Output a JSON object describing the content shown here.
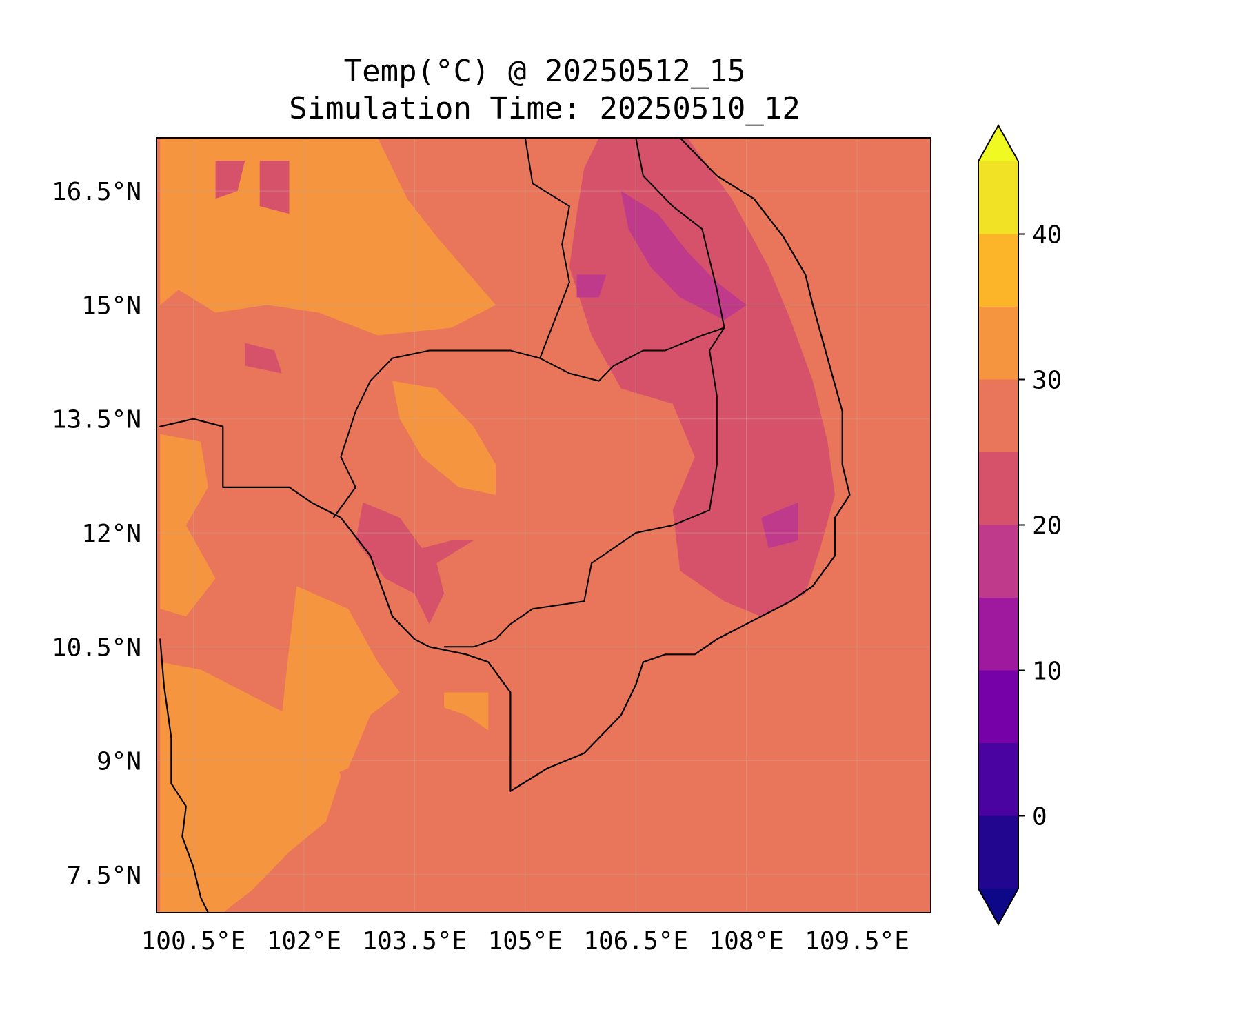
{
  "title": {
    "line1": "Temp(°C) @ 20250512_15",
    "line2": "Simulation Time: 20250510_12"
  },
  "map": {
    "lon_range": [
      100.0,
      110.5
    ],
    "lat_range": [
      7.0,
      17.2
    ],
    "base_color": "#e9755a",
    "lon_ticks": [
      {
        "value": 100.5,
        "label": "100.5°E"
      },
      {
        "value": 102.0,
        "label": "102°E"
      },
      {
        "value": 103.5,
        "label": "103.5°E"
      },
      {
        "value": 105.0,
        "label": "105°E"
      },
      {
        "value": 106.5,
        "label": "106.5°E"
      },
      {
        "value": 108.0,
        "label": "108°E"
      },
      {
        "value": 109.5,
        "label": "109.5°E"
      }
    ],
    "lat_ticks": [
      {
        "value": 16.5,
        "label": "16.5°N"
      },
      {
        "value": 15.0,
        "label": "15°N"
      },
      {
        "value": 13.5,
        "label": "13.5°N"
      },
      {
        "value": 12.0,
        "label": "12°N"
      },
      {
        "value": 10.5,
        "label": "10.5°N"
      },
      {
        "value": 9.0,
        "label": "9°N"
      },
      {
        "value": 7.5,
        "label": "7.5°N"
      }
    ],
    "regions": [
      {
        "name": "warm-gulf-west",
        "band": "30-35",
        "points": [
          [
            100.05,
            7.0
          ],
          [
            100.05,
            10.3
          ],
          [
            100.6,
            10.2
          ],
          [
            101.2,
            9.9
          ],
          [
            101.8,
            9.6
          ],
          [
            102.3,
            9.3
          ],
          [
            102.5,
            8.8
          ],
          [
            102.3,
            8.2
          ],
          [
            101.8,
            7.8
          ],
          [
            101.3,
            7.3
          ],
          [
            100.9,
            7.0
          ]
        ]
      },
      {
        "name": "warm-gulf-east",
        "band": "30-35",
        "points": [
          [
            101.9,
            11.3
          ],
          [
            102.6,
            11.0
          ],
          [
            103.0,
            10.3
          ],
          [
            103.3,
            9.9
          ],
          [
            102.9,
            9.6
          ],
          [
            102.6,
            8.9
          ],
          [
            102.1,
            8.7
          ],
          [
            101.7,
            9.6
          ],
          [
            101.8,
            10.5
          ]
        ]
      },
      {
        "name": "warm-thailand-west",
        "band": "30-35",
        "points": [
          [
            100.05,
            13.3
          ],
          [
            100.6,
            13.2
          ],
          [
            100.7,
            12.6
          ],
          [
            100.4,
            12.1
          ],
          [
            100.8,
            11.4
          ],
          [
            100.4,
            10.9
          ],
          [
            100.05,
            11.0
          ]
        ]
      },
      {
        "name": "warm-northwest",
        "band": "30-35",
        "points": [
          [
            100.05,
            17.2
          ],
          [
            103.0,
            17.2
          ],
          [
            103.4,
            16.4
          ],
          [
            103.8,
            15.9
          ],
          [
            104.6,
            15.0
          ],
          [
            104.0,
            14.7
          ],
          [
            103.0,
            14.6
          ],
          [
            102.2,
            14.9
          ],
          [
            101.5,
            15.0
          ],
          [
            100.8,
            14.9
          ],
          [
            100.3,
            15.2
          ],
          [
            100.05,
            15.0
          ]
        ]
      },
      {
        "name": "warm-tonle-sap",
        "band": "30-35",
        "points": [
          [
            103.2,
            14.0
          ],
          [
            103.8,
            13.9
          ],
          [
            104.3,
            13.4
          ],
          [
            104.6,
            12.9
          ],
          [
            104.6,
            12.5
          ],
          [
            104.1,
            12.6
          ],
          [
            103.6,
            13.0
          ],
          [
            103.3,
            13.5
          ]
        ]
      },
      {
        "name": "warm-bassac",
        "band": "30-35",
        "points": [
          [
            103.9,
            9.9
          ],
          [
            104.5,
            9.9
          ],
          [
            104.5,
            9.4
          ],
          [
            104.2,
            9.6
          ],
          [
            103.9,
            9.7
          ]
        ]
      },
      {
        "name": "cool-central-highlands",
        "band": "20-25",
        "points": [
          [
            106.0,
            17.2
          ],
          [
            107.2,
            17.2
          ],
          [
            107.8,
            16.4
          ],
          [
            108.3,
            15.5
          ],
          [
            108.6,
            14.8
          ],
          [
            108.9,
            14.0
          ],
          [
            109.1,
            13.2
          ],
          [
            109.2,
            12.5
          ],
          [
            109.0,
            11.8
          ],
          [
            108.8,
            11.2
          ],
          [
            108.2,
            10.9
          ],
          [
            107.7,
            11.1
          ],
          [
            107.1,
            11.5
          ],
          [
            107.0,
            12.3
          ],
          [
            107.3,
            13.0
          ],
          [
            107.0,
            13.7
          ],
          [
            106.3,
            13.9
          ],
          [
            105.9,
            14.6
          ],
          [
            105.6,
            15.5
          ],
          [
            105.7,
            16.2
          ],
          [
            105.8,
            16.8
          ]
        ]
      },
      {
        "name": "cool-cambodia-west",
        "band": "20-25",
        "points": [
          [
            102.8,
            12.4
          ],
          [
            103.3,
            12.2
          ],
          [
            103.6,
            11.8
          ],
          [
            104.0,
            11.9
          ],
          [
            104.3,
            11.9
          ],
          [
            103.8,
            11.6
          ],
          [
            103.9,
            11.2
          ],
          [
            103.7,
            10.8
          ],
          [
            103.5,
            11.2
          ],
          [
            103.1,
            11.4
          ],
          [
            102.7,
            11.9
          ]
        ]
      },
      {
        "name": "cool-patch-laos-a",
        "band": "20-25",
        "points": [
          [
            100.8,
            16.9
          ],
          [
            101.2,
            16.9
          ],
          [
            101.1,
            16.5
          ],
          [
            100.8,
            16.4
          ]
        ]
      },
      {
        "name": "cool-patch-laos-b",
        "band": "20-25",
        "points": [
          [
            101.4,
            16.9
          ],
          [
            101.8,
            16.9
          ],
          [
            101.8,
            16.2
          ],
          [
            101.4,
            16.3
          ]
        ]
      },
      {
        "name": "cool-patch-thai",
        "band": "20-25",
        "points": [
          [
            101.2,
            14.5
          ],
          [
            101.6,
            14.4
          ],
          [
            101.7,
            14.1
          ],
          [
            101.2,
            14.2
          ]
        ]
      },
      {
        "name": "hot-ridge-annamite",
        "band": "15-20",
        "points": [
          [
            106.3,
            16.5
          ],
          [
            106.8,
            16.2
          ],
          [
            107.2,
            15.7
          ],
          [
            107.6,
            15.3
          ],
          [
            108.0,
            15.0
          ],
          [
            107.7,
            14.8
          ],
          [
            107.1,
            15.1
          ],
          [
            106.7,
            15.5
          ],
          [
            106.4,
            16.0
          ]
        ]
      },
      {
        "name": "hot-ridge-dalat",
        "band": "15-20",
        "points": [
          [
            108.2,
            12.2
          ],
          [
            108.7,
            12.4
          ],
          [
            108.7,
            11.9
          ],
          [
            108.3,
            11.8
          ]
        ]
      },
      {
        "name": "hot-patch-bolaven",
        "band": "15-20",
        "points": [
          [
            105.7,
            15.4
          ],
          [
            106.1,
            15.4
          ],
          [
            106.0,
            15.1
          ],
          [
            105.7,
            15.1
          ]
        ]
      }
    ],
    "band_colors": {
      "15-20": "#bf3a8a",
      "20-25": "#d6526b",
      "25-30": "#e9755a",
      "30-35": "#f6953f"
    },
    "coastlines": [
      {
        "name": "indochina-coast",
        "points": [
          [
            107.1,
            17.2
          ],
          [
            107.6,
            16.7
          ],
          [
            108.1,
            16.4
          ],
          [
            108.5,
            15.9
          ],
          [
            108.8,
            15.4
          ],
          [
            108.9,
            15.0
          ],
          [
            109.1,
            14.3
          ],
          [
            109.3,
            13.6
          ],
          [
            109.3,
            12.9
          ],
          [
            109.4,
            12.5
          ],
          [
            109.2,
            12.2
          ],
          [
            109.2,
            11.7
          ],
          [
            108.9,
            11.3
          ],
          [
            108.6,
            11.1
          ],
          [
            108.2,
            10.9
          ],
          [
            107.6,
            10.6
          ],
          [
            107.3,
            10.4
          ],
          [
            106.9,
            10.4
          ],
          [
            106.6,
            10.3
          ],
          [
            106.5,
            10.0
          ],
          [
            106.3,
            9.6
          ],
          [
            105.8,
            9.1
          ],
          [
            105.3,
            8.9
          ],
          [
            104.8,
            8.6
          ],
          [
            104.8,
            9.0
          ],
          [
            104.8,
            9.9
          ],
          [
            104.5,
            10.3
          ],
          [
            104.2,
            10.4
          ],
          [
            103.7,
            10.5
          ],
          [
            103.5,
            10.6
          ],
          [
            103.2,
            10.9
          ],
          [
            102.9,
            11.7
          ],
          [
            102.5,
            12.2
          ],
          [
            102.1,
            12.4
          ],
          [
            101.8,
            12.6
          ],
          [
            101.4,
            12.6
          ],
          [
            100.9,
            12.6
          ],
          [
            100.9,
            12.9
          ],
          [
            100.9,
            13.4
          ],
          [
            100.5,
            13.5
          ],
          [
            100.05,
            13.4
          ]
        ]
      },
      {
        "name": "malay-coast",
        "points": [
          [
            100.05,
            10.6
          ],
          [
            100.1,
            10.0
          ],
          [
            100.2,
            9.3
          ],
          [
            100.2,
            8.7
          ],
          [
            100.4,
            8.4
          ],
          [
            100.35,
            8.0
          ],
          [
            100.5,
            7.6
          ],
          [
            100.6,
            7.2
          ],
          [
            100.7,
            7.0
          ]
        ]
      }
    ],
    "borders": [
      {
        "name": "thai-cambodia-laos",
        "points": [
          [
            102.4,
            12.2
          ],
          [
            102.7,
            12.6
          ],
          [
            102.5,
            13.0
          ],
          [
            102.7,
            13.6
          ],
          [
            102.9,
            14.0
          ],
          [
            103.2,
            14.3
          ],
          [
            103.7,
            14.4
          ],
          [
            104.2,
            14.4
          ],
          [
            104.8,
            14.4
          ],
          [
            105.2,
            14.3
          ],
          [
            105.6,
            14.1
          ],
          [
            106.0,
            14.0
          ],
          [
            106.2,
            14.2
          ],
          [
            106.6,
            14.4
          ],
          [
            106.9,
            14.4
          ],
          [
            107.4,
            14.6
          ],
          [
            107.7,
            14.7
          ]
        ]
      },
      {
        "name": "cambodia-vietnam",
        "points": [
          [
            107.7,
            14.7
          ],
          [
            107.5,
            14.4
          ],
          [
            107.6,
            13.8
          ],
          [
            107.6,
            13.4
          ],
          [
            107.6,
            12.9
          ],
          [
            107.5,
            12.3
          ],
          [
            107.0,
            12.1
          ],
          [
            106.5,
            12.0
          ],
          [
            106.2,
            11.8
          ],
          [
            105.9,
            11.6
          ],
          [
            105.8,
            11.1
          ],
          [
            105.1,
            11.0
          ],
          [
            104.8,
            10.8
          ],
          [
            104.6,
            10.6
          ],
          [
            104.3,
            10.5
          ],
          [
            103.9,
            10.5
          ]
        ]
      },
      {
        "name": "thai-laos",
        "points": [
          [
            105.0,
            17.2
          ],
          [
            105.1,
            16.6
          ],
          [
            105.6,
            16.3
          ],
          [
            105.5,
            15.8
          ],
          [
            105.6,
            15.3
          ],
          [
            105.4,
            14.8
          ],
          [
            105.2,
            14.3
          ]
        ]
      },
      {
        "name": "laos-vietnam",
        "points": [
          [
            106.5,
            17.2
          ],
          [
            106.6,
            16.7
          ],
          [
            107.0,
            16.3
          ],
          [
            107.4,
            16.0
          ],
          [
            107.5,
            15.6
          ],
          [
            107.6,
            15.2
          ],
          [
            107.7,
            14.7
          ]
        ]
      }
    ]
  },
  "colorbar": {
    "levels": [
      -5,
      0,
      5,
      10,
      15,
      20,
      25,
      30,
      35,
      40,
      45
    ],
    "colors": [
      "#220690",
      "#4a02a0",
      "#7701a8",
      "#9e199d",
      "#bf3a8a",
      "#d6526b",
      "#e9755a",
      "#f6953f",
      "#fcb529",
      "#f2e225"
    ],
    "extend_min_color": "#0d0887",
    "extend_max_color": "#f0f921",
    "tick_values": [
      0,
      10,
      20,
      30,
      40
    ],
    "tick_labels": [
      "0",
      "10",
      "20",
      "30",
      "40"
    ]
  }
}
